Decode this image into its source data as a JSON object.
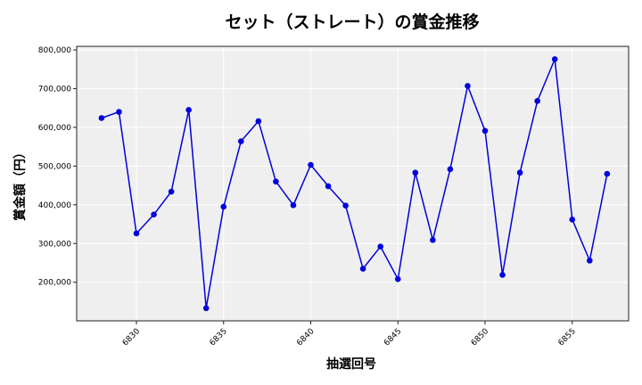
{
  "chart_data": {
    "type": "line",
    "title": "セット（ストレート）の賞金推移",
    "xlabel": "抽選回号",
    "ylabel": "賞金額（円）",
    "x": [
      6828,
      6829,
      6830,
      6831,
      6832,
      6833,
      6834,
      6835,
      6836,
      6837,
      6838,
      6839,
      6840,
      6841,
      6842,
      6843,
      6844,
      6845,
      6846,
      6847,
      6848,
      6849,
      6850,
      6851,
      6852,
      6853,
      6854,
      6855,
      6856,
      6857
    ],
    "series": [
      {
        "name": "賞金額",
        "color": "#0000dd",
        "values": [
          624000,
          640000,
          326000,
          375000,
          434000,
          645000,
          133000,
          395000,
          564000,
          616000,
          460000,
          399000,
          503000,
          448000,
          398000,
          235000,
          292000,
          208000,
          483000,
          309000,
          492000,
          707000,
          591000,
          219000,
          483000,
          668000,
          776000,
          362000,
          256000,
          480000
        ]
      }
    ],
    "xticks": [
      6830,
      6835,
      6840,
      6845,
      6850,
      6855
    ],
    "yticks": [
      200000,
      300000,
      400000,
      500000,
      600000,
      700000,
      800000
    ],
    "ytick_labels": [
      "200,000",
      "300,000",
      "400,000",
      "500,000",
      "600,000",
      "700,000",
      "800,000"
    ],
    "xlim": [
      6826.5,
      6858.5
    ],
    "ylim": [
      100000,
      810000
    ],
    "grid": true,
    "legend": false,
    "background": "#efefef"
  }
}
